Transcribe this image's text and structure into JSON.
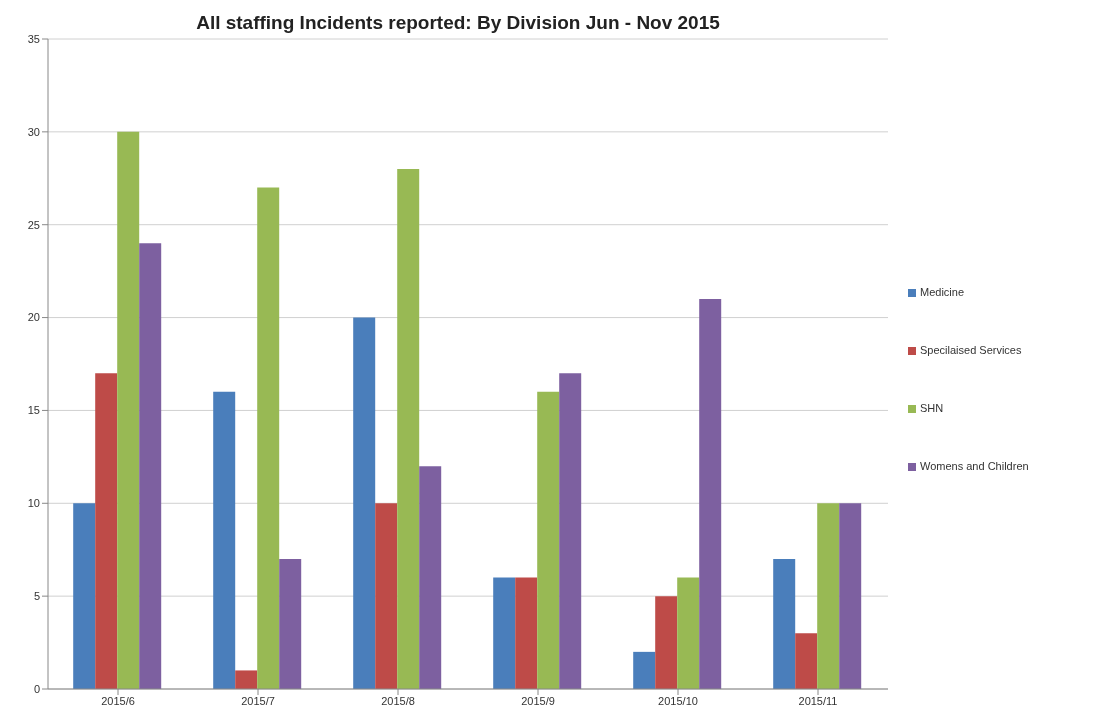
{
  "chart_data": {
    "type": "bar",
    "title": "All staffing Incidents reported: By Division Jun - Nov 2015",
    "categories": [
      "2015/6",
      "2015/7",
      "2015/8",
      "2015/9",
      "2015/10",
      "2015/11"
    ],
    "series": [
      {
        "name": "Medicine",
        "color": "#4a7ebb",
        "values": [
          10,
          16,
          20,
          6,
          2,
          7
        ]
      },
      {
        "name": "Specilaised Services",
        "color": "#be4b48",
        "values": [
          17,
          1,
          10,
          6,
          5,
          3
        ]
      },
      {
        "name": "SHN",
        "color": "#98b954",
        "values": [
          30,
          27,
          28,
          16,
          6,
          10
        ]
      },
      {
        "name": "Womens and Children",
        "color": "#7d60a0",
        "values": [
          24,
          7,
          12,
          17,
          21,
          10
        ]
      }
    ],
    "ylim": [
      0,
      35
    ],
    "yticks": [
      0,
      5,
      10,
      15,
      20,
      25,
      30,
      35
    ],
    "grid": "y",
    "legend": "right"
  }
}
